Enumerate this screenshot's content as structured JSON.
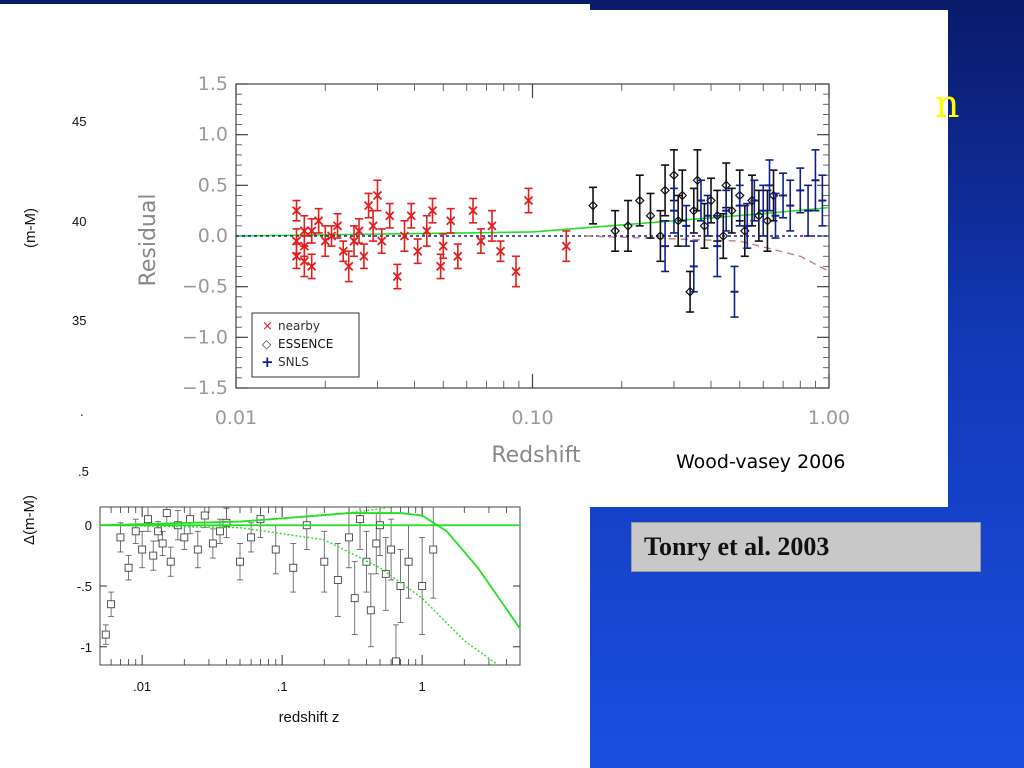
{
  "slide": {
    "title_fragment": "n",
    "credit_top": "Wood-vasey 2006",
    "credit_bottom": "Tonry et al. 2003",
    "left_fragments": [
      "45",
      "40",
      "35",
      ".",
      ".5"
    ],
    "left_axis_label": "(m-M)"
  },
  "colors": {
    "nearby": "#e0201e",
    "essence": "#111111",
    "snls": "#10208a",
    "fit_green": "#22e022",
    "dashed_ref": "#10208a",
    "dashed_brown": "#c08080"
  },
  "chart_data": [
    {
      "type": "scatter",
      "title": "",
      "xlabel": "Redshift",
      "ylabel": "Residual",
      "xscale": "log",
      "xlim": [
        0.01,
        1.0
      ],
      "ylim": [
        -1.5,
        1.5
      ],
      "xticks": [
        "0.01",
        "0.10",
        "1.00"
      ],
      "yticks": [
        "1.5",
        "1.0",
        "0.5",
        "0.0",
        "−0.5",
        "−1.0",
        "−1.5"
      ],
      "legend_position": "bottom-left",
      "legend": [
        {
          "marker": "×",
          "label": "nearby"
        },
        {
          "marker": "◇",
          "label": "ESSENCE"
        },
        {
          "marker": "+",
          "label": "SNLS"
        }
      ],
      "series": [
        {
          "name": "nearby",
          "points": [
            [
              0.016,
              0.25,
              0.1
            ],
            [
              0.016,
              -0.05,
              0.12
            ],
            [
              0.016,
              -0.2,
              0.12
            ],
            [
              0.017,
              0.05,
              0.15
            ],
            [
              0.017,
              -0.25,
              0.15
            ],
            [
              0.017,
              -0.1,
              0.1
            ],
            [
              0.018,
              0.05,
              0.12
            ],
            [
              0.018,
              -0.3,
              0.12
            ],
            [
              0.019,
              0.15,
              0.12
            ],
            [
              0.02,
              -0.05,
              0.15
            ],
            [
              0.021,
              0.0,
              0.1
            ],
            [
              0.022,
              0.1,
              0.12
            ],
            [
              0.023,
              -0.15,
              0.1
            ],
            [
              0.024,
              -0.3,
              0.15
            ],
            [
              0.025,
              -0.05,
              0.15
            ],
            [
              0.026,
              0.05,
              0.12
            ],
            [
              0.027,
              -0.2,
              0.12
            ],
            [
              0.028,
              0.3,
              0.12
            ],
            [
              0.029,
              0.1,
              0.15
            ],
            [
              0.03,
              0.4,
              0.15
            ],
            [
              0.031,
              -0.05,
              0.12
            ],
            [
              0.033,
              0.2,
              0.12
            ],
            [
              0.035,
              -0.4,
              0.12
            ],
            [
              0.037,
              0.0,
              0.15
            ],
            [
              0.039,
              0.2,
              0.12
            ],
            [
              0.041,
              -0.15,
              0.12
            ],
            [
              0.044,
              0.05,
              0.15
            ],
            [
              0.046,
              0.25,
              0.12
            ],
            [
              0.049,
              -0.3,
              0.12
            ],
            [
              0.05,
              -0.1,
              0.12
            ],
            [
              0.053,
              0.15,
              0.12
            ],
            [
              0.056,
              -0.2,
              0.12
            ],
            [
              0.063,
              0.25,
              0.12
            ],
            [
              0.067,
              -0.05,
              0.12
            ],
            [
              0.073,
              0.1,
              0.15
            ],
            [
              0.078,
              -0.15,
              0.1
            ],
            [
              0.088,
              -0.35,
              0.15
            ],
            [
              0.097,
              0.35,
              0.12
            ],
            [
              0.13,
              -0.1,
              0.15
            ]
          ]
        },
        {
          "name": "ESSENCE",
          "points": [
            [
              0.16,
              0.3,
              0.18
            ],
            [
              0.19,
              0.05,
              0.2
            ],
            [
              0.21,
              0.1,
              0.25
            ],
            [
              0.23,
              0.35,
              0.25
            ],
            [
              0.25,
              0.2,
              0.22
            ],
            [
              0.27,
              0.0,
              0.25
            ],
            [
              0.28,
              0.45,
              0.25
            ],
            [
              0.3,
              0.6,
              0.25
            ],
            [
              0.31,
              0.15,
              0.25
            ],
            [
              0.32,
              0.4,
              0.25
            ],
            [
              0.34,
              -0.55,
              0.2
            ],
            [
              0.35,
              0.25,
              0.22
            ],
            [
              0.36,
              0.55,
              0.3
            ],
            [
              0.38,
              0.1,
              0.22
            ],
            [
              0.4,
              0.35,
              0.22
            ],
            [
              0.42,
              0.2,
              0.25
            ],
            [
              0.44,
              0.0,
              0.22
            ],
            [
              0.45,
              0.5,
              0.22
            ],
            [
              0.47,
              0.25,
              0.22
            ],
            [
              0.5,
              0.4,
              0.25
            ],
            [
              0.52,
              0.05,
              0.25
            ],
            [
              0.55,
              0.35,
              0.25
            ],
            [
              0.58,
              0.2,
              0.25
            ],
            [
              0.62,
              0.15,
              0.3
            ],
            [
              0.65,
              0.4,
              0.25
            ]
          ]
        },
        {
          "name": "SNLS",
          "points": [
            [
              0.28,
              -0.1,
              0.25
            ],
            [
              0.3,
              0.25,
              0.22
            ],
            [
              0.33,
              0.1,
              0.2
            ],
            [
              0.35,
              -0.3,
              0.25
            ],
            [
              0.37,
              0.35,
              0.2
            ],
            [
              0.39,
              0.2,
              0.2
            ],
            [
              0.42,
              -0.1,
              0.3
            ],
            [
              0.45,
              0.25,
              0.2
            ],
            [
              0.48,
              -0.55,
              0.25
            ],
            [
              0.5,
              0.3,
              0.2
            ],
            [
              0.53,
              0.1,
              0.22
            ],
            [
              0.56,
              0.35,
              0.2
            ],
            [
              0.6,
              0.25,
              0.25
            ],
            [
              0.63,
              0.5,
              0.25
            ],
            [
              0.66,
              0.2,
              0.22
            ],
            [
              0.7,
              0.4,
              0.22
            ],
            [
              0.74,
              0.3,
              0.25
            ],
            [
              0.8,
              0.45,
              0.22
            ],
            [
              0.85,
              0.25,
              0.25
            ],
            [
              0.9,
              0.55,
              0.3
            ],
            [
              0.95,
              0.35,
              0.25
            ]
          ]
        }
      ],
      "lines": [
        {
          "name": "fit",
          "style": "solid",
          "color": "green",
          "x": [
            0.01,
            0.1,
            0.3,
            0.6,
            1.0
          ],
          "y": [
            0.0,
            0.04,
            0.15,
            0.22,
            0.28
          ]
        },
        {
          "name": "reference",
          "style": "dashed",
          "color": "navy",
          "x": [
            0.01,
            1.0
          ],
          "y": [
            0.0,
            0.0
          ]
        },
        {
          "name": "alt",
          "style": "dashed",
          "color": "brown",
          "x": [
            0.15,
            0.5,
            0.8,
            1.0
          ],
          "y": [
            0.0,
            -0.05,
            -0.2,
            -0.35
          ]
        }
      ]
    },
    {
      "type": "scatter",
      "title": "",
      "xlabel": "redshift z",
      "ylabel": "Δ(m-M)",
      "xscale": "log",
      "xlim": [
        0.005,
        5
      ],
      "ylim": [
        -1.15,
        0.15
      ],
      "xticks": [
        ".01",
        ".1",
        "1"
      ],
      "yticks": [
        "0",
        "-.5",
        "-1"
      ],
      "marker": "open-square",
      "points": [
        [
          0.0055,
          -0.9,
          0.08
        ],
        [
          0.006,
          -0.65,
          0.1
        ],
        [
          0.007,
          -0.1,
          0.12
        ],
        [
          0.008,
          -0.35,
          0.1
        ],
        [
          0.009,
          -0.05,
          0.1
        ],
        [
          0.01,
          -0.2,
          0.15
        ],
        [
          0.011,
          0.05,
          0.1
        ],
        [
          0.012,
          -0.25,
          0.12
        ],
        [
          0.013,
          -0.05,
          0.08
        ],
        [
          0.014,
          -0.15,
          0.1
        ],
        [
          0.015,
          0.1,
          0.1
        ],
        [
          0.016,
          -0.3,
          0.12
        ],
        [
          0.018,
          0.0,
          0.12
        ],
        [
          0.02,
          -0.1,
          0.1
        ],
        [
          0.022,
          0.05,
          0.12
        ],
        [
          0.025,
          -0.2,
          0.15
        ],
        [
          0.028,
          0.08,
          0.1
        ],
        [
          0.032,
          -0.15,
          0.12
        ],
        [
          0.036,
          -0.05,
          0.1
        ],
        [
          0.04,
          0.02,
          0.12
        ],
        [
          0.05,
          -0.3,
          0.15
        ],
        [
          0.06,
          -0.1,
          0.12
        ],
        [
          0.07,
          0.05,
          0.15
        ],
        [
          0.09,
          -0.2,
          0.2
        ],
        [
          0.12,
          -0.35,
          0.2
        ],
        [
          0.15,
          0.0,
          0.2
        ],
        [
          0.2,
          -0.3,
          0.25
        ],
        [
          0.25,
          -0.45,
          0.3
        ],
        [
          0.3,
          -0.1,
          0.25
        ],
        [
          0.33,
          -0.6,
          0.3
        ],
        [
          0.36,
          0.05,
          0.25
        ],
        [
          0.4,
          -0.3,
          0.25
        ],
        [
          0.43,
          -0.7,
          0.3
        ],
        [
          0.47,
          -0.15,
          0.25
        ],
        [
          0.5,
          0.0,
          0.25
        ],
        [
          0.55,
          -0.4,
          0.3
        ],
        [
          0.6,
          -0.2,
          0.25
        ],
        [
          0.65,
          -1.12,
          0.3
        ],
        [
          0.7,
          -0.5,
          0.3
        ],
        [
          0.8,
          -0.3,
          0.3
        ],
        [
          1.0,
          -0.5,
          0.4
        ],
        [
          1.2,
          -0.2,
          0.4
        ]
      ],
      "lines": [
        {
          "name": "flat",
          "style": "solid",
          "x": [
            0.005,
            5
          ],
          "y": [
            0,
            0
          ]
        },
        {
          "name": "model-rise",
          "style": "solid",
          "x": [
            0.005,
            0.05,
            0.3,
            0.7,
            1.0,
            1.5,
            2.5,
            5.0
          ],
          "y": [
            0.0,
            0.03,
            0.1,
            0.1,
            0.08,
            -0.05,
            -0.35,
            -0.85
          ]
        },
        {
          "name": "model-dotted",
          "style": "dotted",
          "x": [
            0.005,
            0.05,
            0.2,
            0.5,
            1.0,
            2.0,
            3.5
          ],
          "y": [
            0.0,
            -0.02,
            -0.12,
            -0.35,
            -0.6,
            -0.95,
            -1.2
          ]
        },
        {
          "name": "model-dotted-up",
          "style": "dotted",
          "x": [
            0.005,
            0.05,
            0.2,
            0.4,
            0.6
          ],
          "y": [
            0.0,
            0.03,
            0.08,
            0.12,
            0.15
          ]
        }
      ]
    }
  ]
}
